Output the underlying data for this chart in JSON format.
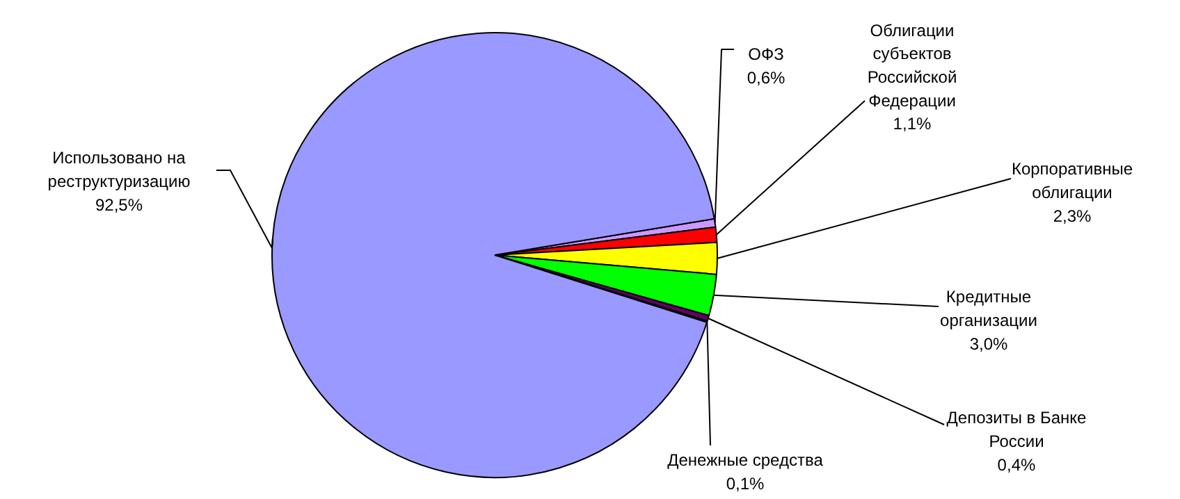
{
  "chart_data": {
    "type": "pie",
    "categories": [
      "ОФЗ",
      "Облигации\nсубъектов\nРоссийской\nФедерации",
      "Корпоративные\nоблигации",
      "Кредитные\nорганизации",
      "Депозиты в Банке\nРоссии",
      "Денежные средства",
      "Использовано на\nреструктуризацию"
    ],
    "values": [
      0.6,
      1.1,
      2.3,
      3.0,
      0.4,
      0.1,
      92.5
    ],
    "colors": [
      "#cc99ff",
      "#ff0000",
      "#ffff00",
      "#00ff00",
      "#660066",
      "#993366",
      "#9999ff"
    ],
    "value_labels": [
      "0,6%",
      "1,1%",
      "2,3%",
      "3,0%",
      "0,4%",
      "0,1%",
      "92,5%"
    ]
  }
}
